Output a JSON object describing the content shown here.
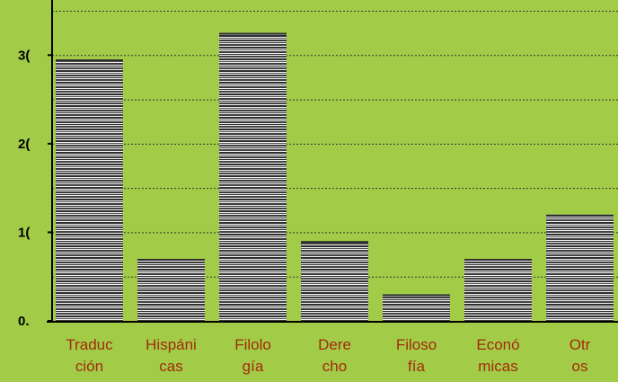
{
  "chart_data": {
    "type": "bar",
    "categories": [
      [
        "Traduc",
        "ción"
      ],
      [
        "Hispáni",
        "cas"
      ],
      [
        "Filolo",
        "gía"
      ],
      [
        "Dere",
        "cho"
      ],
      [
        "Filoso",
        "fía"
      ],
      [
        "Econó",
        "micas"
      ],
      [
        "Otr",
        "os"
      ]
    ],
    "values": [
      29.5,
      7,
      32.5,
      9,
      3,
      7,
      12
    ],
    "ylim": [
      0,
      35
    ],
    "yticks": [
      0,
      10,
      20,
      30
    ],
    "ytick_labels": [
      "0.",
      "1(",
      "2(",
      "3("
    ],
    "title": "",
    "xlabel": "",
    "ylabel": "",
    "grid": true,
    "colors": {
      "plot_background": "#a2cc47",
      "bar_stripe_dark": "#2e2e2e",
      "bar_stripe_light": "#f2f2f2",
      "category_label": "#a32a0b",
      "axis": "#000000",
      "gridline": "#333333"
    }
  }
}
